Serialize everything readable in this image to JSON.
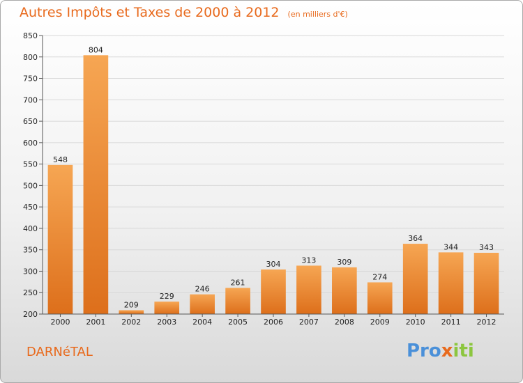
{
  "header": {
    "title": "Autres Impôts et Taxes de 2000 à 2012",
    "unit": "(en milliers d'€)"
  },
  "footer": {
    "city": "DARNéTAL",
    "brand_parts": [
      "Pro",
      "x",
      "iti"
    ]
  },
  "colors": {
    "title": "#e86a1d",
    "bar_top": "#f5a24f",
    "bar_bottom": "#e0721e",
    "grid": "#d9d9d9"
  },
  "chart_data": {
    "type": "bar",
    "title": "Autres Impôts et Taxes de 2000 à 2012",
    "subtitle": "(en milliers d'€)",
    "xlabel": "",
    "ylabel": "",
    "categories": [
      "2000",
      "2001",
      "2002",
      "2003",
      "2004",
      "2005",
      "2006",
      "2007",
      "2008",
      "2009",
      "2010",
      "2011",
      "2012"
    ],
    "values": [
      548,
      804,
      209,
      229,
      246,
      261,
      304,
      313,
      309,
      274,
      364,
      344,
      343
    ],
    "ylim": [
      200,
      850
    ],
    "yticks": [
      200,
      250,
      300,
      350,
      400,
      450,
      500,
      550,
      600,
      650,
      700,
      750,
      800,
      850
    ],
    "grid": true,
    "legend": "none"
  }
}
